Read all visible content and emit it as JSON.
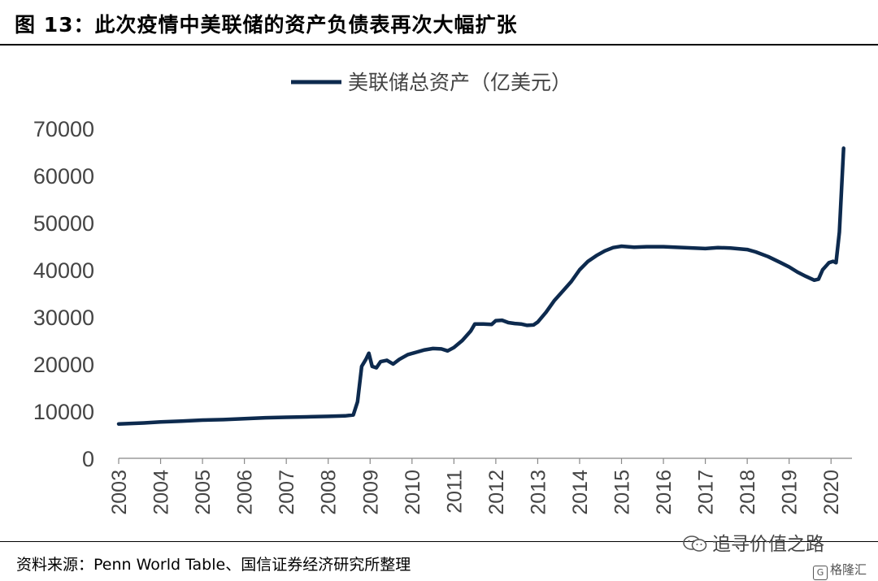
{
  "header": {
    "title": "图  13：此次疫情中美联储的资产负债表再次大幅扩张"
  },
  "footer": {
    "source": "资料来源：Penn World Table、国信证券经济研究所整理",
    "watermark": "追寻价值之路",
    "watermark2": "格隆汇"
  },
  "chart_data": {
    "type": "line",
    "series_name": "美联储总资产（亿美元）",
    "ylim": [
      0,
      70000
    ],
    "xlim": [
      2003,
      2020.5
    ],
    "y_ticks": [
      "0",
      "10000",
      "20000",
      "30000",
      "40000",
      "50000",
      "60000",
      "70000"
    ],
    "y_tick_values": [
      0,
      10000,
      20000,
      30000,
      40000,
      50000,
      60000,
      70000
    ],
    "x_ticks": [
      "2003",
      "2004",
      "2005",
      "2006",
      "2007",
      "2008",
      "2009",
      "2010",
      "2011",
      "2012",
      "2013",
      "2014",
      "2015",
      "2016",
      "2017",
      "2018",
      "2019",
      "2020"
    ],
    "x_tick_values": [
      2003,
      2004,
      2005,
      2006,
      2007,
      2008,
      2009,
      2010,
      2011,
      2012,
      2013,
      2014,
      2015,
      2016,
      2017,
      2018,
      2019,
      2020
    ],
    "grid": false,
    "legend": "top-center",
    "line_color": "#0d2a4e",
    "points": [
      [
        2003.0,
        7300
      ],
      [
        2003.3,
        7400
      ],
      [
        2003.6,
        7500
      ],
      [
        2004.0,
        7700
      ],
      [
        2004.5,
        7900
      ],
      [
        2005.0,
        8100
      ],
      [
        2005.5,
        8200
      ],
      [
        2006.0,
        8400
      ],
      [
        2006.5,
        8600
      ],
      [
        2007.0,
        8700
      ],
      [
        2007.5,
        8800
      ],
      [
        2008.0,
        8900
      ],
      [
        2008.4,
        9000
      ],
      [
        2008.6,
        9200
      ],
      [
        2008.7,
        12000
      ],
      [
        2008.8,
        19500
      ],
      [
        2008.9,
        21000
      ],
      [
        2008.97,
        22300
      ],
      [
        2009.05,
        19500
      ],
      [
        2009.15,
        19200
      ],
      [
        2009.25,
        20500
      ],
      [
        2009.4,
        20800
      ],
      [
        2009.55,
        20000
      ],
      [
        2009.7,
        21000
      ],
      [
        2009.9,
        22000
      ],
      [
        2010.1,
        22500
      ],
      [
        2010.3,
        23000
      ],
      [
        2010.5,
        23300
      ],
      [
        2010.7,
        23200
      ],
      [
        2010.85,
        22800
      ],
      [
        2011.0,
        23500
      ],
      [
        2011.2,
        25000
      ],
      [
        2011.4,
        27000
      ],
      [
        2011.5,
        28500
      ],
      [
        2011.7,
        28500
      ],
      [
        2011.9,
        28400
      ],
      [
        2012.0,
        29200
      ],
      [
        2012.15,
        29300
      ],
      [
        2012.3,
        28800
      ],
      [
        2012.45,
        28600
      ],
      [
        2012.6,
        28500
      ],
      [
        2012.75,
        28200
      ],
      [
        2012.9,
        28300
      ],
      [
        2013.0,
        28900
      ],
      [
        2013.2,
        31000
      ],
      [
        2013.4,
        33500
      ],
      [
        2013.6,
        35500
      ],
      [
        2013.8,
        37500
      ],
      [
        2014.0,
        40000
      ],
      [
        2014.2,
        41800
      ],
      [
        2014.4,
        43000
      ],
      [
        2014.6,
        44000
      ],
      [
        2014.8,
        44700
      ],
      [
        2015.0,
        45000
      ],
      [
        2015.3,
        44800
      ],
      [
        2015.6,
        44900
      ],
      [
        2016.0,
        44900
      ],
      [
        2016.5,
        44700
      ],
      [
        2017.0,
        44500
      ],
      [
        2017.3,
        44700
      ],
      [
        2017.6,
        44600
      ],
      [
        2018.0,
        44300
      ],
      [
        2018.2,
        43800
      ],
      [
        2018.5,
        42800
      ],
      [
        2018.8,
        41500
      ],
      [
        2019.0,
        40600
      ],
      [
        2019.2,
        39500
      ],
      [
        2019.4,
        38600
      ],
      [
        2019.6,
        37800
      ],
      [
        2019.7,
        38000
      ],
      [
        2019.8,
        40000
      ],
      [
        2019.95,
        41500
      ],
      [
        2020.05,
        41800
      ],
      [
        2020.12,
        41500
      ],
      [
        2020.2,
        48000
      ],
      [
        2020.3,
        65800
      ]
    ]
  }
}
